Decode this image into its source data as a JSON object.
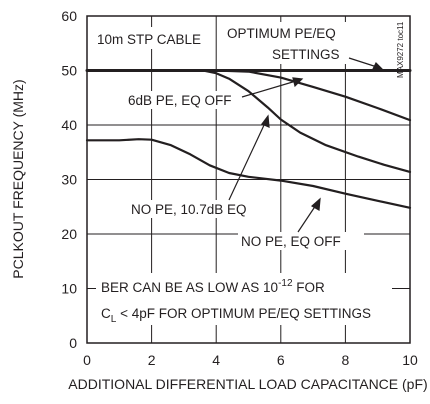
{
  "chart_data": {
    "type": "line",
    "xlabel": "ADDITIONAL DIFFERENTIAL LOAD CAPACITANCE (pF)",
    "ylabel": "PCLKOUT FREQUENCY (MHz)",
    "xlim": [
      0,
      10
    ],
    "ylim": [
      0,
      60
    ],
    "xticks": [
      "0",
      "2",
      "4",
      "6",
      "8",
      "10"
    ],
    "yticks": [
      "0",
      "10",
      "20",
      "30",
      "40",
      "50",
      "60"
    ],
    "grid": true,
    "figure_code": "MAX9272 toc11",
    "series": [
      {
        "label": "OPTIMUM PE/EQ SETTINGS",
        "x": [
          0,
          2,
          4,
          6,
          8,
          10
        ],
        "y": [
          50,
          50,
          50,
          50,
          50,
          50
        ]
      },
      {
        "label": "6dB PE, EQ OFF",
        "x": [
          3.3,
          4,
          5,
          6,
          7,
          8,
          9,
          10
        ],
        "y": [
          50,
          50,
          49.8,
          48.7,
          47,
          45.2,
          43.1,
          40.9
        ]
      },
      {
        "label": "NO PE, 10.7dB EQ",
        "x": [
          3.6,
          4,
          4.4,
          5,
          5.6,
          6,
          6.6,
          7.4,
          8.4,
          9.2,
          10
        ],
        "y": [
          50,
          49.5,
          48.5,
          46.2,
          43.2,
          41,
          38.6,
          36.3,
          34.2,
          32.7,
          31.4
        ]
      },
      {
        "label": "NO PE, EQ OFF",
        "x": [
          0,
          1,
          1.6,
          2,
          2.6,
          3.2,
          3.8,
          4.4,
          5,
          6,
          7,
          8,
          9,
          10
        ],
        "y": [
          37.2,
          37.2,
          37.4,
          37.3,
          36.3,
          34.6,
          32.6,
          31.2,
          30.5,
          29.8,
          28.8,
          27.4,
          26.1,
          24.8
        ]
      }
    ],
    "annotations": {
      "cable": "10m STP CABLE",
      "optimum_1": "OPTIMUM PE/EQ",
      "optimum_2": "SETTINGS",
      "pe6": "6dB PE, EQ OFF",
      "nope_eq": "NO PE, 10.7dB EQ",
      "nope_eqoff": "NO PE, EQ OFF",
      "ber_1_prefix": "BER CAN BE AS LOW AS 10",
      "ber_1_exponent": "-12",
      "ber_1_suffix": " FOR",
      "ber_2_c": "C",
      "ber_2_sub": "L",
      "ber_2_rest": " < 4pF FOR OPTIMUM PE/EQ SETTINGS"
    }
  }
}
